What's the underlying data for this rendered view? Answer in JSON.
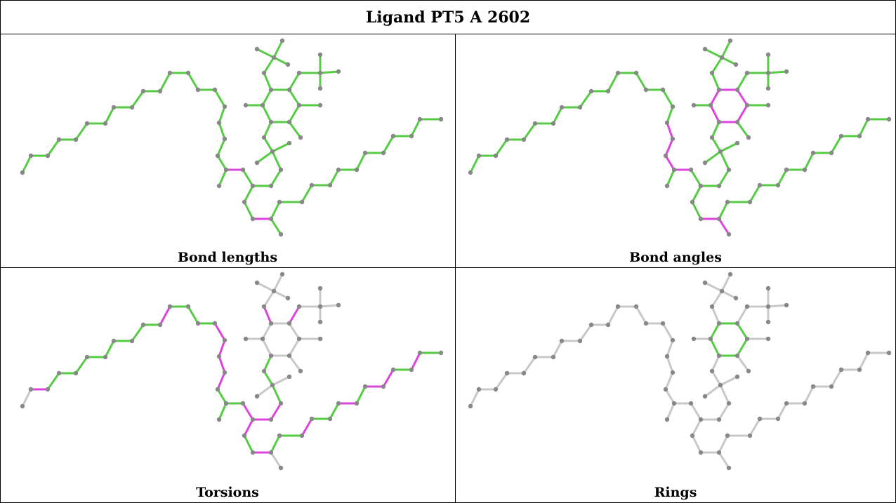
{
  "title": "Ligand PT5 A 2602",
  "panels": [
    {
      "label": "Bond lengths"
    },
    {
      "label": "Bond angles"
    },
    {
      "label": "Torsions"
    },
    {
      "label": "Rings"
    }
  ]
}
